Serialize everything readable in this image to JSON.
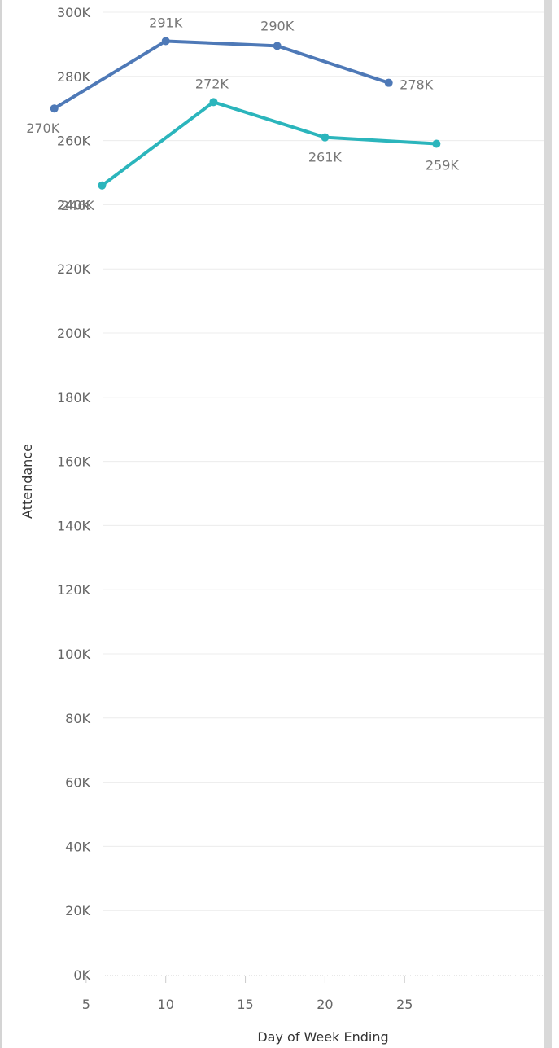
{
  "chart_data": {
    "type": "line",
    "xlabel": "Day of Week Ending",
    "ylabel": "Attendance",
    "xlim": [
      0,
      30
    ],
    "ylim": [
      0,
      300000
    ],
    "x_ticks": [
      5,
      10,
      15,
      20,
      25
    ],
    "x_tick_labels": [
      "5",
      "10",
      "15",
      "20",
      "25"
    ],
    "y_ticks": [
      0,
      20000,
      40000,
      60000,
      80000,
      100000,
      120000,
      140000,
      160000,
      180000,
      200000,
      220000,
      240000,
      260000,
      280000,
      300000
    ],
    "y_tick_labels": [
      "0K",
      "20K",
      "40K",
      "60K",
      "80K",
      "100K",
      "120K",
      "140K",
      "160K",
      "180K",
      "200K",
      "220K",
      "240K",
      "260K",
      "280K",
      "300K"
    ],
    "grid": "horizontal",
    "series": [
      {
        "color": "#4e79b7",
        "points": [
          {
            "x": 3,
            "y": 270000,
            "label": "270K"
          },
          {
            "x": 10,
            "y": 291000,
            "label": "291K"
          },
          {
            "x": 17,
            "y": 289500,
            "label": "290K"
          },
          {
            "x": 24,
            "y": 278000,
            "label": "278K"
          }
        ]
      },
      {
        "color": "#2bb5bc",
        "points": [
          {
            "x": 6,
            "y": 246000,
            "label": "246K"
          },
          {
            "x": 13,
            "y": 272000,
            "label": "272K"
          },
          {
            "x": 20,
            "y": 261000,
            "label": "261K"
          },
          {
            "x": 27,
            "y": 259000,
            "label": "259K"
          }
        ]
      }
    ]
  }
}
